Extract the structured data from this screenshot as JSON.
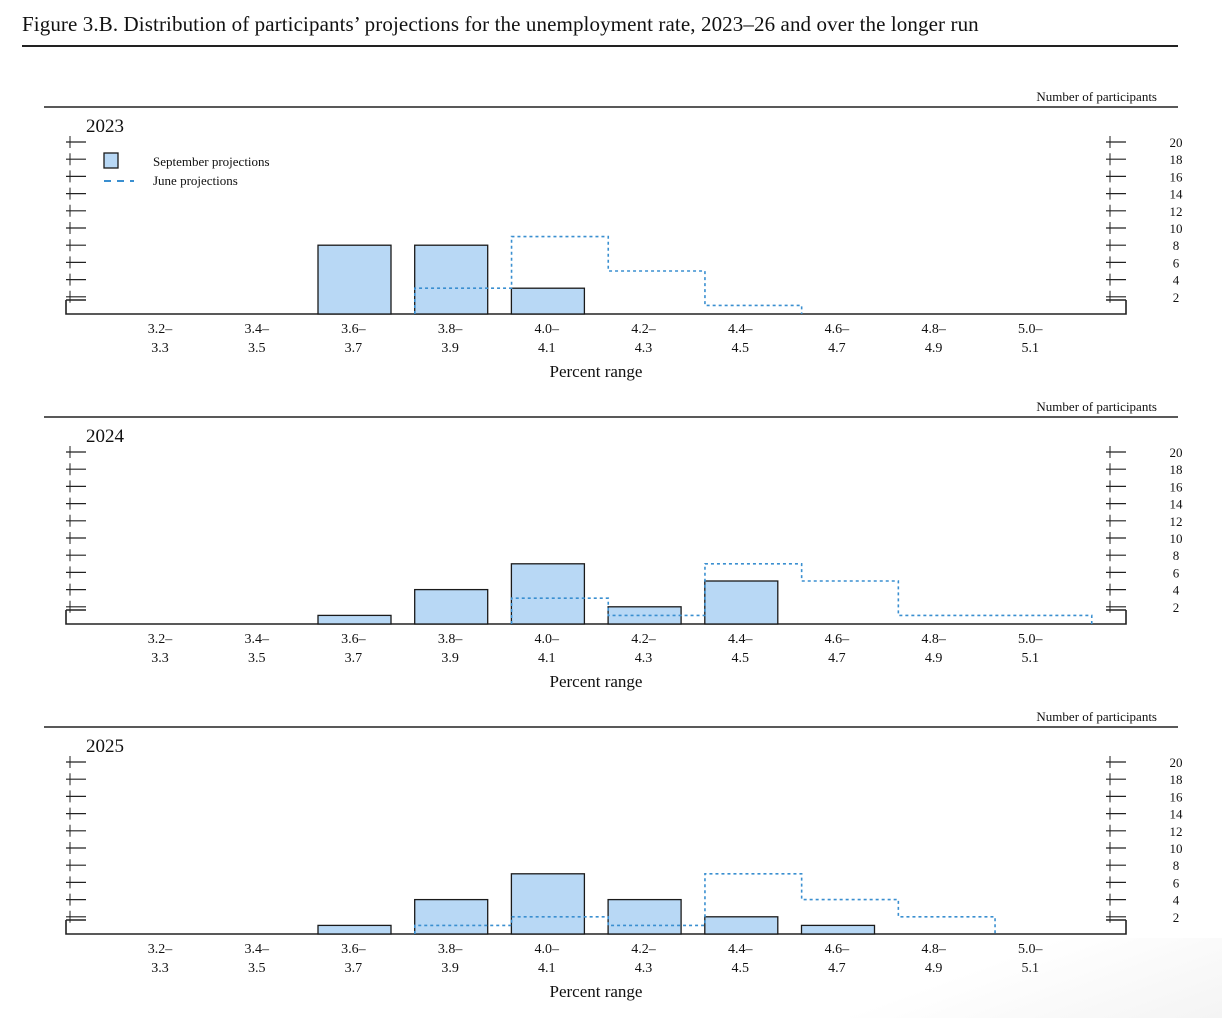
{
  "figure": {
    "title": "Figure 3.B. Distribution of participants’ projections for the unemployment rate, 2023–26 and over the longer run"
  },
  "legend": {
    "september_label": "September projections",
    "june_label": "June projections"
  },
  "colors": {
    "september_fill": "#b8d8f5",
    "september_stroke": "#1a1a1a",
    "june_stroke": "#3a8fd0",
    "axis": "#222222"
  },
  "chart_data": [
    {
      "type": "bar",
      "title": "2023",
      "xlabel": "Percent range",
      "ylabel": "Number of participants",
      "ylim": [
        0,
        20
      ],
      "yticks": [
        2,
        4,
        6,
        8,
        10,
        12,
        14,
        16,
        18,
        20
      ],
      "categories": [
        {
          "low": "3.2–",
          "high": "3.3"
        },
        {
          "low": "3.4–",
          "high": "3.5"
        },
        {
          "low": "3.6–",
          "high": "3.7"
        },
        {
          "low": "3.8–",
          "high": "3.9"
        },
        {
          "low": "4.0–",
          "high": "4.1"
        },
        {
          "low": "4.2–",
          "high": "4.3"
        },
        {
          "low": "4.4–",
          "high": "4.5"
        },
        {
          "low": "4.6–",
          "high": "4.7"
        },
        {
          "low": "4.8–",
          "high": "4.9"
        },
        {
          "low": "5.0–",
          "high": "5.1"
        }
      ],
      "series": [
        {
          "name": "September projections",
          "style": "bar",
          "values": [
            0,
            0,
            8,
            8,
            3,
            0,
            0,
            0,
            0,
            0
          ]
        },
        {
          "name": "June projections",
          "style": "dashed-step",
          "values": [
            0,
            0,
            0,
            3,
            9,
            5,
            1,
            0,
            0,
            0
          ]
        }
      ],
      "legend_position": "top-left"
    },
    {
      "type": "bar",
      "title": "2024",
      "xlabel": "Percent range",
      "ylabel": "Number of participants",
      "ylim": [
        0,
        20
      ],
      "yticks": [
        2,
        4,
        6,
        8,
        10,
        12,
        14,
        16,
        18,
        20
      ],
      "categories": [
        {
          "low": "3.2–",
          "high": "3.3"
        },
        {
          "low": "3.4–",
          "high": "3.5"
        },
        {
          "low": "3.6–",
          "high": "3.7"
        },
        {
          "low": "3.8–",
          "high": "3.9"
        },
        {
          "low": "4.0–",
          "high": "4.1"
        },
        {
          "low": "4.2–",
          "high": "4.3"
        },
        {
          "low": "4.4–",
          "high": "4.5"
        },
        {
          "low": "4.6–",
          "high": "4.7"
        },
        {
          "low": "4.8–",
          "high": "4.9"
        },
        {
          "low": "5.0–",
          "high": "5.1"
        }
      ],
      "series": [
        {
          "name": "September projections",
          "style": "bar",
          "values": [
            0,
            0,
            1,
            4,
            7,
            2,
            5,
            0,
            0,
            0
          ]
        },
        {
          "name": "June projections",
          "style": "dashed-step",
          "values": [
            0,
            0,
            0,
            0,
            3,
            1,
            7,
            5,
            1,
            1
          ]
        }
      ]
    },
    {
      "type": "bar",
      "title": "2025",
      "xlabel": "Percent range",
      "ylabel": "Number of participants",
      "ylim": [
        0,
        20
      ],
      "yticks": [
        2,
        4,
        6,
        8,
        10,
        12,
        14,
        16,
        18,
        20
      ],
      "categories": [
        {
          "low": "3.2–",
          "high": "3.3"
        },
        {
          "low": "3.4–",
          "high": "3.5"
        },
        {
          "low": "3.6–",
          "high": "3.7"
        },
        {
          "low": "3.8–",
          "high": "3.9"
        },
        {
          "low": "4.0–",
          "high": "4.1"
        },
        {
          "low": "4.2–",
          "high": "4.3"
        },
        {
          "low": "4.4–",
          "high": "4.5"
        },
        {
          "low": "4.6–",
          "high": "4.7"
        },
        {
          "low": "4.8–",
          "high": "4.9"
        },
        {
          "low": "5.0–",
          "high": "5.1"
        }
      ],
      "series": [
        {
          "name": "September projections",
          "style": "bar",
          "values": [
            0,
            0,
            1,
            4,
            7,
            4,
            2,
            1,
            0,
            0
          ]
        },
        {
          "name": "June projections",
          "style": "dashed-step",
          "values": [
            0,
            0,
            0,
            1,
            2,
            1,
            7,
            4,
            2,
            0
          ]
        }
      ]
    }
  ]
}
